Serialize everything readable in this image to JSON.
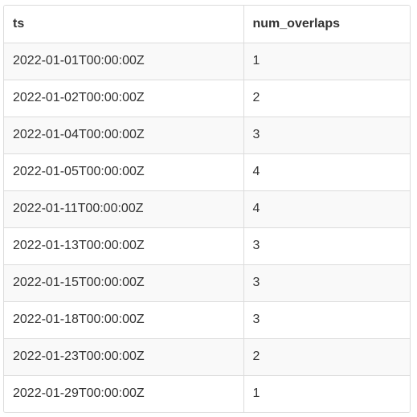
{
  "table": {
    "columns": [
      "ts",
      "num_overlaps"
    ],
    "rows": [
      [
        "2022-01-01T00:00:00Z",
        "1"
      ],
      [
        "2022-01-02T00:00:00Z",
        "2"
      ],
      [
        "2022-01-04T00:00:00Z",
        "3"
      ],
      [
        "2022-01-05T00:00:00Z",
        "4"
      ],
      [
        "2022-01-11T00:00:00Z",
        "4"
      ],
      [
        "2022-01-13T00:00:00Z",
        "3"
      ],
      [
        "2022-01-15T00:00:00Z",
        "3"
      ],
      [
        "2022-01-18T00:00:00Z",
        "3"
      ],
      [
        "2022-01-23T00:00:00Z",
        "2"
      ],
      [
        "2022-01-29T00:00:00Z",
        "1"
      ]
    ]
  }
}
